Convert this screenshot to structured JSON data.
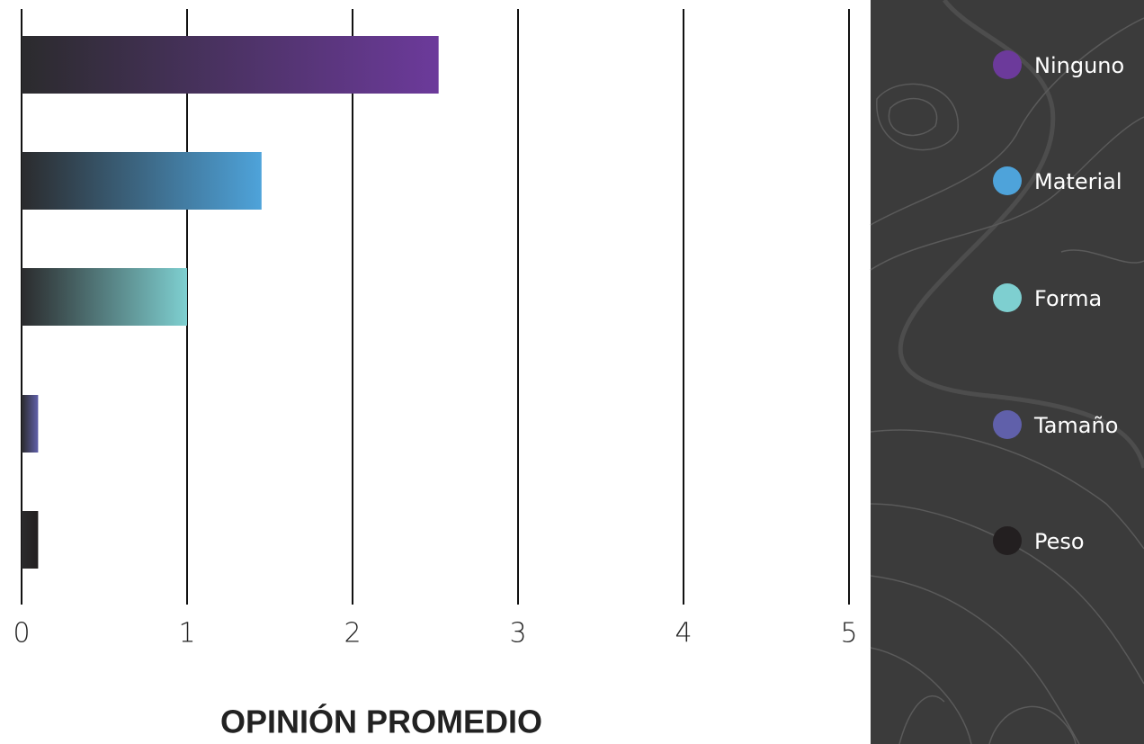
{
  "chart_data": {
    "type": "bar",
    "orientation": "horizontal",
    "xlabel": "OPINIÓN PROMEDIO",
    "categories": [
      "Ninguno",
      "Material",
      "Forma",
      "Tamaño",
      "Peso"
    ],
    "values": [
      2.52,
      1.45,
      1.0,
      0.1,
      0.1
    ],
    "colors": [
      "#6c3a9b",
      "#4ea3da",
      "#7ecfd0",
      "#6060aa",
      "#231f20"
    ],
    "xlim": [
      0,
      5
    ],
    "xticks": [
      0,
      1,
      2,
      3,
      4,
      5
    ],
    "grid": true,
    "legend": "right"
  }
}
